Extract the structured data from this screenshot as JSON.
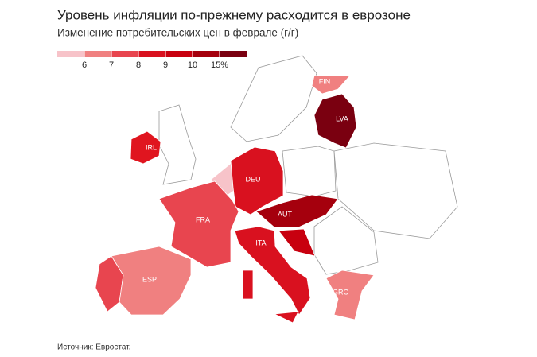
{
  "header": {
    "title": "Уровень инфляции по-прежнему расходится в еврозоне",
    "subtitle": "Изменение потребительских цен в феврале (г/г)"
  },
  "legend": {
    "colors": [
      "#f7c3c9",
      "#f08080",
      "#e8454f",
      "#d9111f",
      "#c8000f",
      "#a5000d",
      "#7a0010"
    ],
    "ticks": [
      6,
      7,
      8,
      9,
      10,
      {
        "value": 15,
        "label": "15%"
      }
    ]
  },
  "regions": [
    {
      "label": "FIN",
      "color": "#f08080"
    },
    {
      "label": "LVA",
      "color": "#7a0010"
    },
    {
      "label": "IRL",
      "color": "#e0151f"
    },
    {
      "label": "DEU",
      "color": "#d9111f"
    },
    {
      "label": "FRA",
      "color": "#e8454f"
    },
    {
      "label": "AUT",
      "color": "#a5000d"
    },
    {
      "label": "ITA",
      "color": "#d9111f"
    },
    {
      "label": "ESP",
      "color": "#f08080"
    },
    {
      "label": "GRC",
      "color": "#f08080"
    }
  ],
  "source": "Источник: Евростат."
}
